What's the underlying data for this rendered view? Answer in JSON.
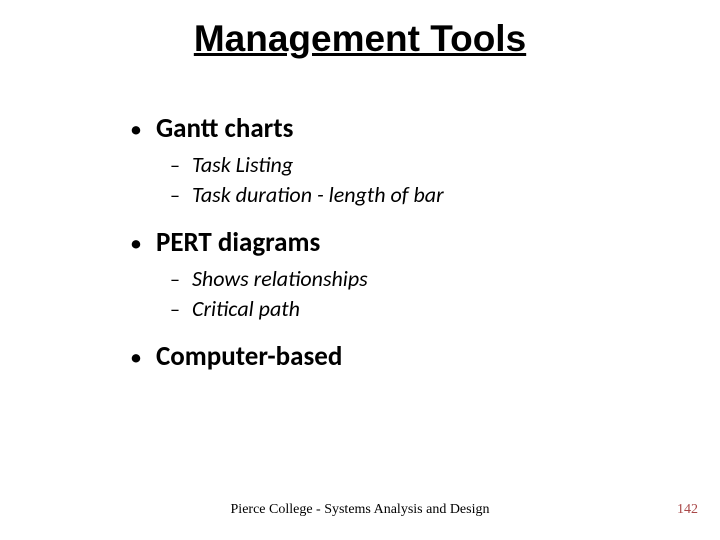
{
  "slide": {
    "title": "Management Tools",
    "items": [
      {
        "label": "Gantt charts",
        "sub": [
          "Task Listing",
          "Task duration - length of bar"
        ]
      },
      {
        "label": "PERT diagrams",
        "sub": [
          "Shows relationships",
          "Critical path"
        ]
      },
      {
        "label": "Computer-based",
        "sub": []
      }
    ],
    "footer": "Pierce College - Systems Analysis and Design",
    "page_number": "142"
  },
  "style": {
    "background_color": "#ffffff",
    "text_color": "#000000",
    "page_number_color": "#a94848",
    "title_fontsize": 37,
    "l1_fontsize": 27,
    "l2_fontsize": 22,
    "footer_fontsize": 14
  }
}
